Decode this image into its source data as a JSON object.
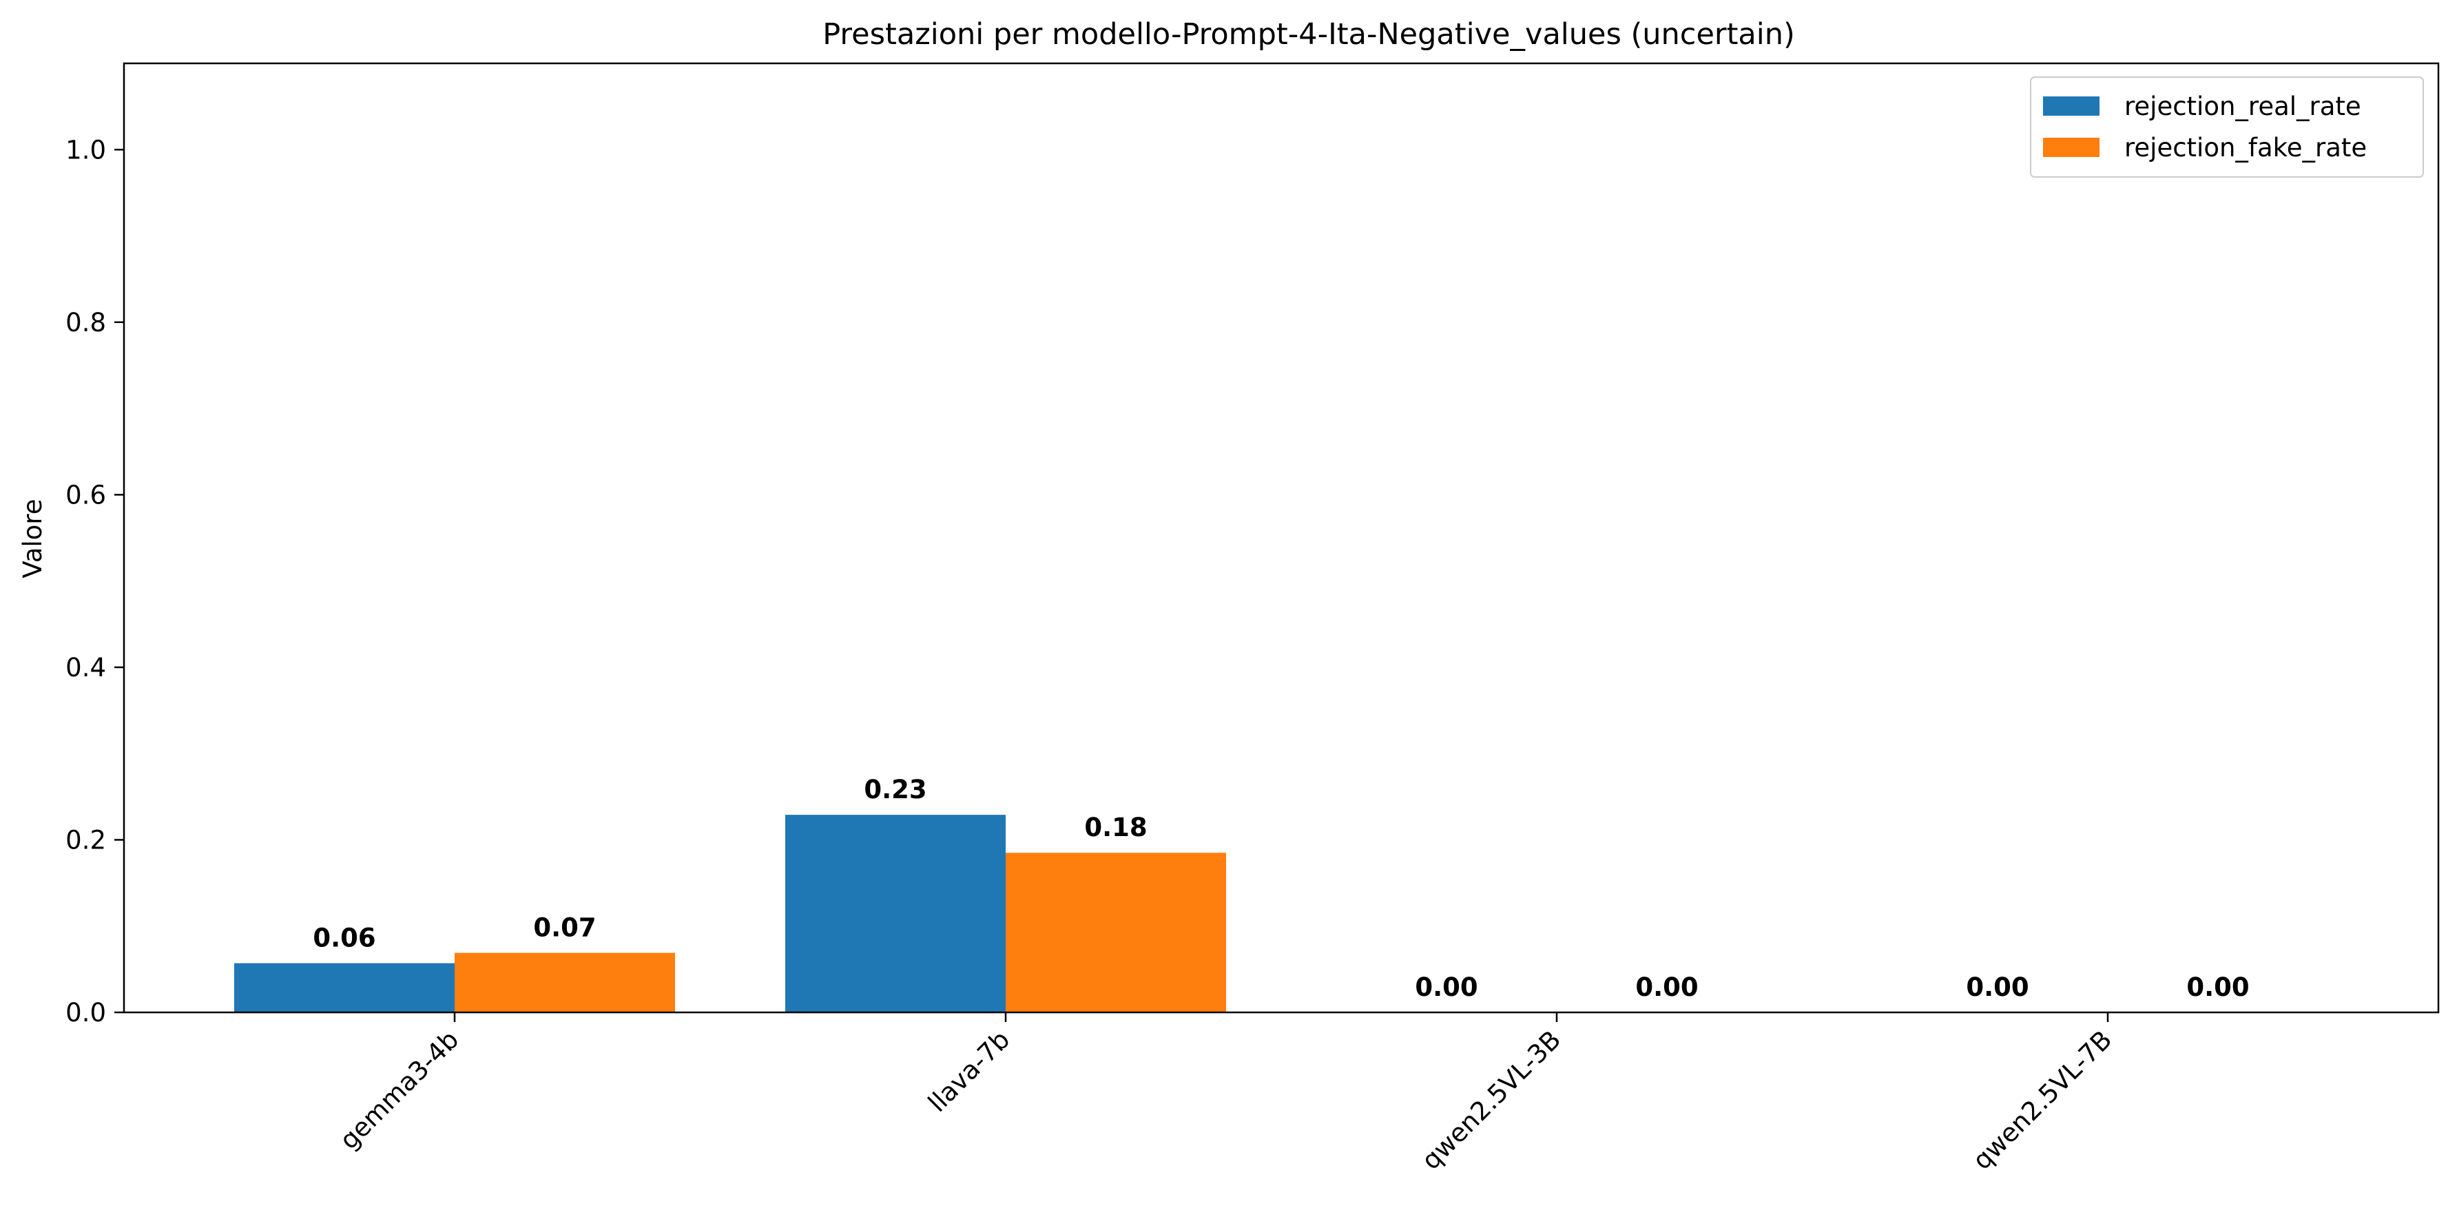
{
  "chart_data": {
    "type": "bar",
    "title": "Prestazioni per modello-Prompt-4-Ita-Negative_values (uncertain)",
    "xlabel": "",
    "ylabel": "Valore",
    "categories": [
      "gemma3-4b",
      "llava-7b",
      "qwen2.5VL-3B",
      "qwen2.5VL-7B"
    ],
    "series": [
      {
        "name": "rejection_real_rate",
        "color": "#1f77b4",
        "values": [
          0.057,
          0.229,
          0.0,
          0.0
        ],
        "labels": [
          "0.06",
          "0.23",
          "0.00",
          "0.00"
        ]
      },
      {
        "name": "rejection_fake_rate",
        "color": "#ff7f0e",
        "values": [
          0.069,
          0.185,
          0.0,
          0.0
        ],
        "labels": [
          "0.07",
          "0.18",
          "0.00",
          "0.00"
        ]
      }
    ],
    "ylim": [
      0,
      1.1
    ],
    "yticks": [
      0.0,
      0.2,
      0.4,
      0.6,
      0.8,
      1.0
    ],
    "ytick_labels": [
      "0.0",
      "0.2",
      "0.4",
      "0.6",
      "0.8",
      "1.0"
    ],
    "grid": false,
    "legend_position": "top-right"
  }
}
